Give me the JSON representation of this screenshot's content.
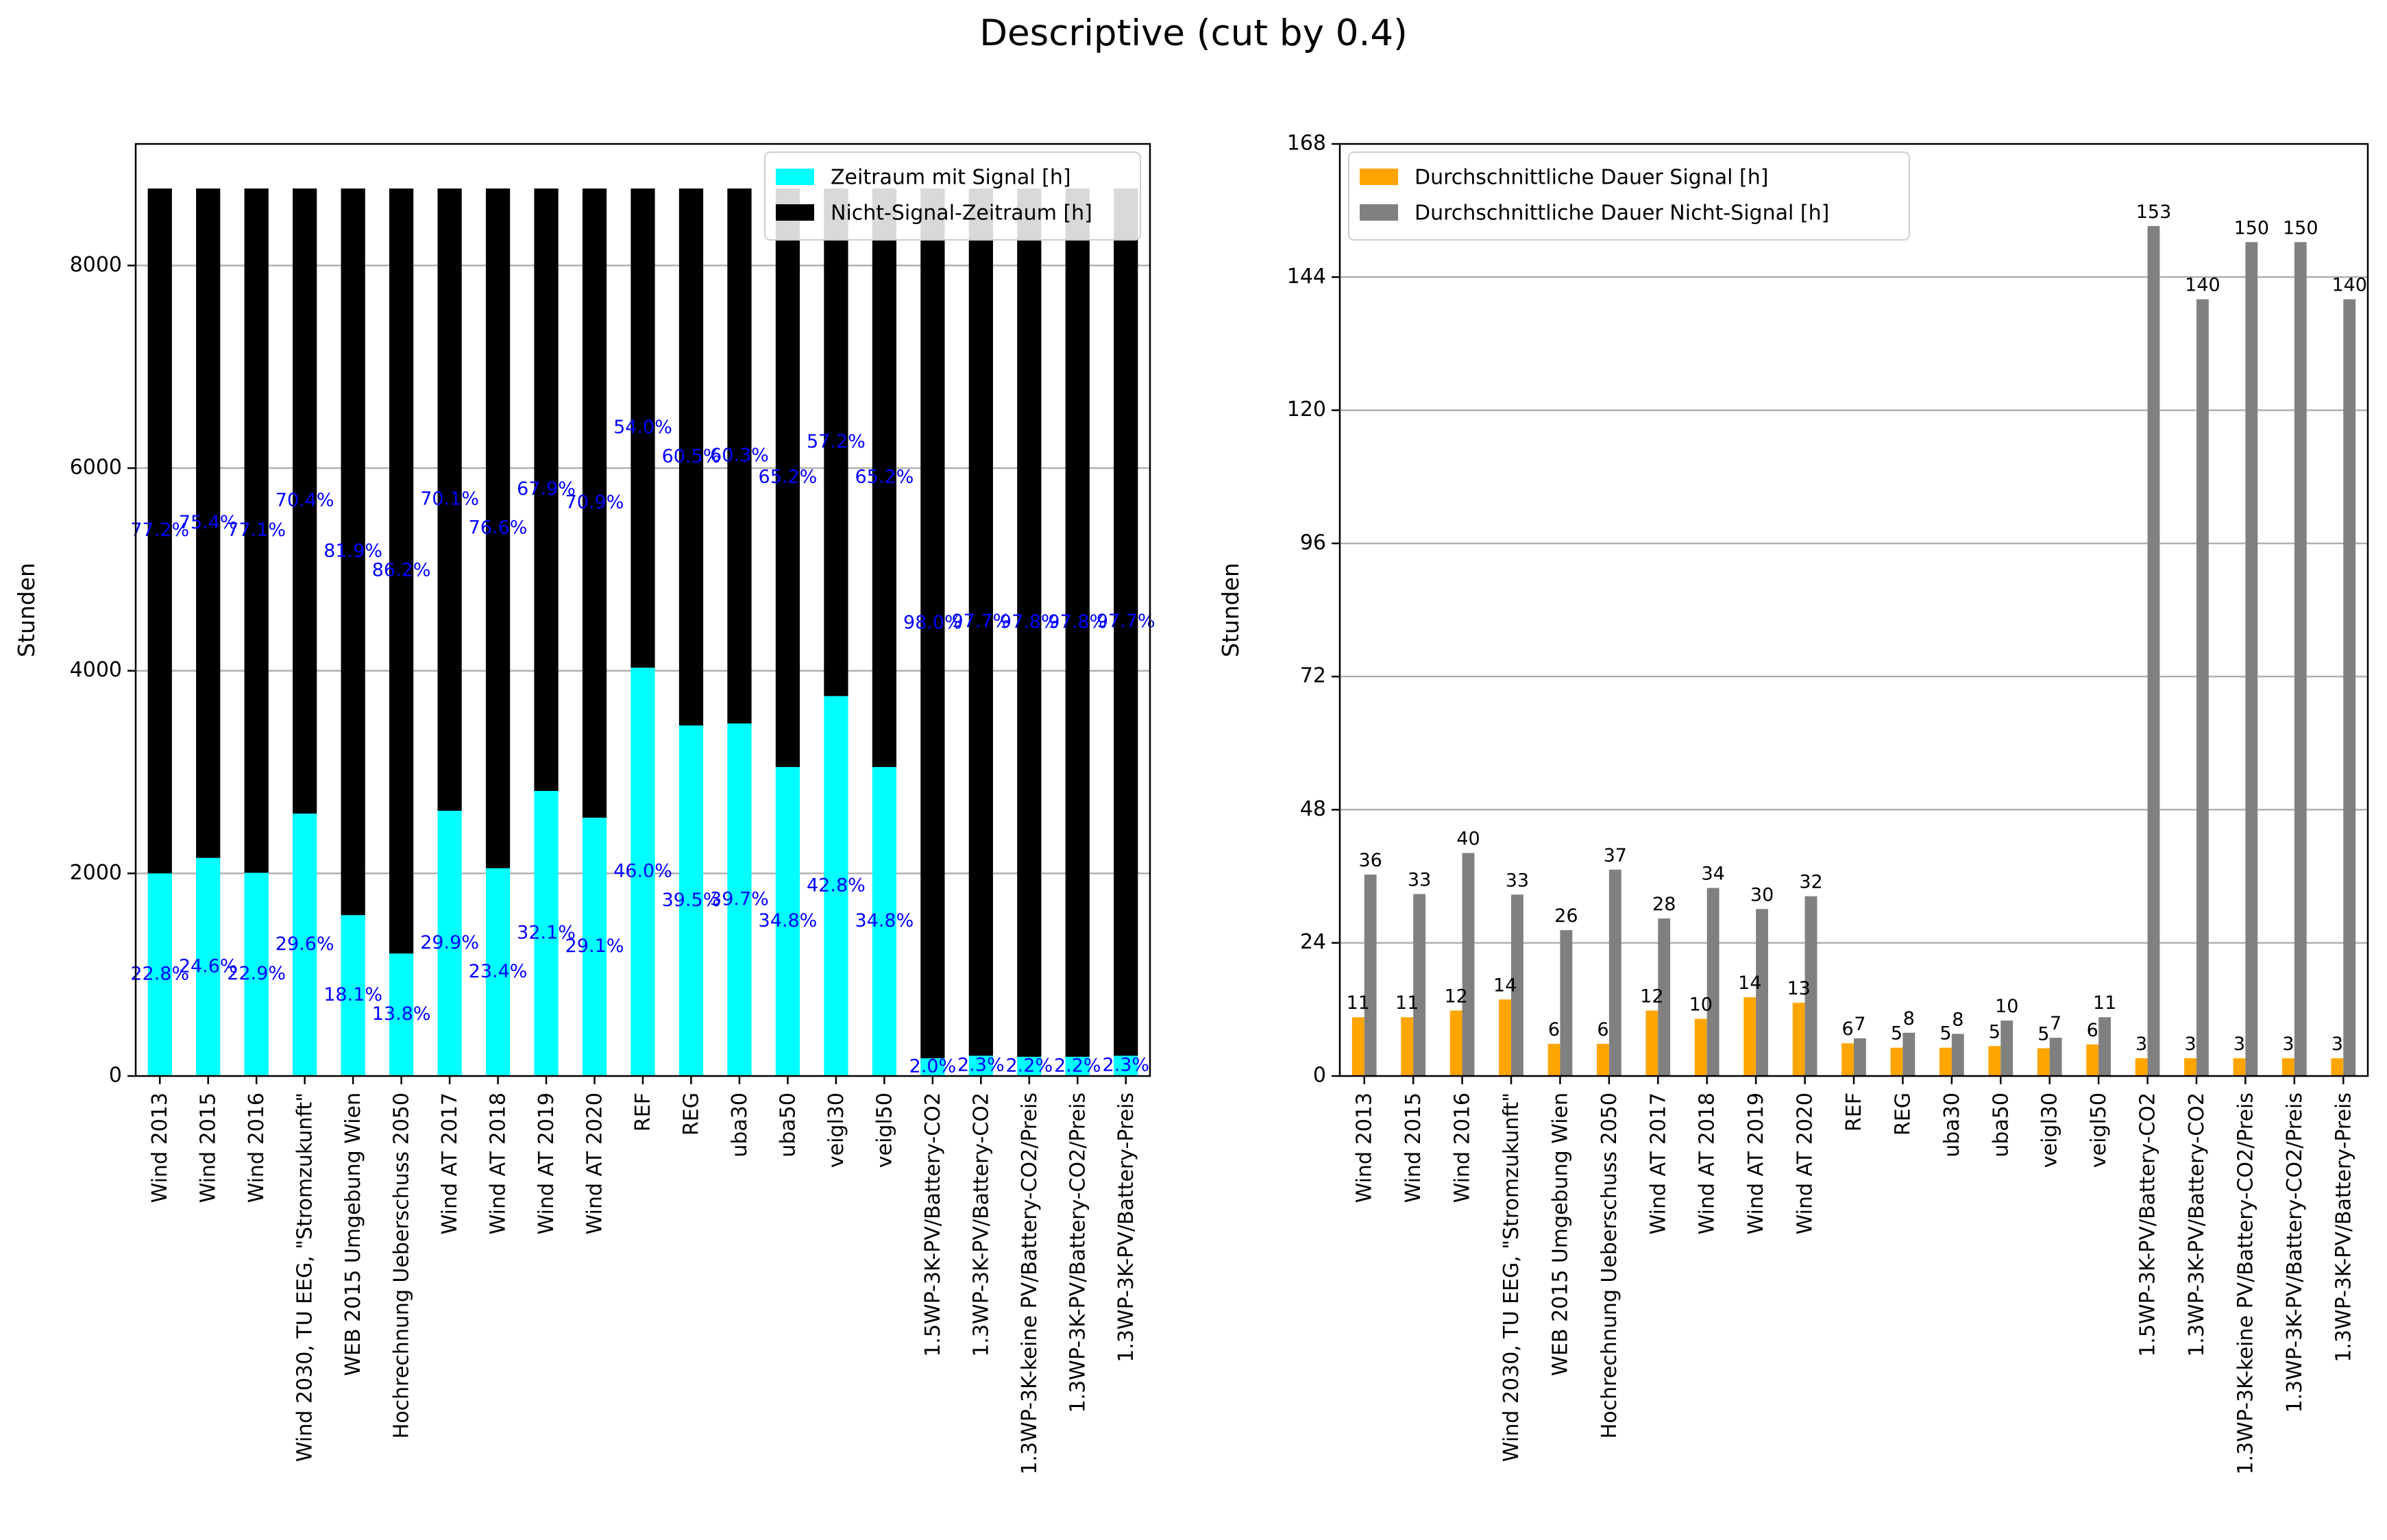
{
  "figure": {
    "title": "Descriptive (cut by 0.4)"
  },
  "chart_data": [
    {
      "type": "bar",
      "stacked": true,
      "ylabel": "Stunden",
      "xlabel": "",
      "ylim": [
        0,
        9200
      ],
      "yticks": [
        0,
        2000,
        4000,
        6000,
        8000
      ],
      "grid": "y",
      "legend_position": "top-right",
      "categories": [
        "Wind 2013",
        "Wind 2015",
        "Wind 2016",
        "Wind 2030, TU EEG, \"Stromzukunft\"",
        "WEB 2015 Umgebung Wien",
        "Hochrechnung Ueberschuss 2050",
        "Wind AT 2017",
        "Wind AT 2018",
        "Wind AT 2019",
        "Wind AT 2020",
        "REF",
        "REG",
        "uba30",
        "uba50",
        "veigl30",
        "veigl50",
        "1.5WP-3K-PV/Battery-CO2",
        "1.3WP-3K-PV/Battery-CO2",
        "1.3WP-3K-keine PV/Battery-CO2/Preis",
        "1.3WP-3K-PV/Battery-CO2/Preis",
        "1.3WP-3K-PV/Battery-Preis"
      ],
      "series": [
        {
          "name": "Zeitraum mit Signal [h]",
          "color": "#00ffff",
          "values": [
            2000,
            2153,
            2006,
            2590,
            1588,
            1209,
            2618,
            2051,
            2814,
            2549,
            4030,
            3460,
            3480,
            3050,
            3750,
            3050,
            175,
            200,
            190,
            190,
            200
          ]
        },
        {
          "name": "Nicht-Signal-Zeitraum [h]",
          "color": "#000000",
          "values": [
            6760,
            6607,
            6754,
            6170,
            7172,
            7551,
            6142,
            6709,
            5946,
            6211,
            4730,
            5300,
            5280,
            5710,
            5010,
            5710,
            8585,
            8560,
            8570,
            8570,
            8560
          ]
        }
      ],
      "bottom_labels": [
        "22.8%",
        "24.6%",
        "22.9%",
        "29.6%",
        "18.1%",
        "13.8%",
        "29.9%",
        "23.4%",
        "32.1%",
        "29.1%",
        "46.0%",
        "39.5%",
        "39.7%",
        "34.8%",
        "42.8%",
        "34.8%",
        "2.0%",
        "2.3%",
        "2.2%",
        "2.2%",
        "2.3%"
      ],
      "top_labels": [
        "77.2%",
        "75.4%",
        "77.1%",
        "70.4%",
        "81.9%",
        "86.2%",
        "70.1%",
        "76.6%",
        "67.9%",
        "70.9%",
        "54.0%",
        "60.5%",
        "60.3%",
        "65.2%",
        "57.2%",
        "65.2%",
        "98.0%",
        "97.7%",
        "97.8%",
        "97.8%",
        "97.7%"
      ],
      "label_color": "#0000ff"
    },
    {
      "type": "bar",
      "grouped": true,
      "ylabel": "Stunden",
      "xlabel": "",
      "ylim": [
        0,
        168
      ],
      "yticks": [
        0,
        24,
        48,
        72,
        96,
        120,
        144,
        168
      ],
      "grid": "y",
      "legend_position": "top-left",
      "categories": [
        "Wind 2013",
        "Wind 2015",
        "Wind 2016",
        "Wind 2030, TU EEG, \"Stromzukunft\"",
        "WEB 2015 Umgebung Wien",
        "Hochrechnung Ueberschuss 2050",
        "Wind AT 2017",
        "Wind AT 2018",
        "Wind AT 2019",
        "Wind AT 2020",
        "REF",
        "REG",
        "uba30",
        "uba50",
        "veigl30",
        "veigl50",
        "1.5WP-3K-PV/Battery-CO2",
        "1.3WP-3K-PV/Battery-CO2",
        "1.3WP-3K-keine PV/Battery-CO2/Preis",
        "1.3WP-3K-PV/Battery-CO2/Preis",
        "1.3WP-3K-PV/Battery-Preis"
      ],
      "series": [
        {
          "name": "Durchschnittliche Dauer Signal [h]",
          "color": "#ffa500",
          "values": [
            10.6,
            10.6,
            11.8,
            13.8,
            5.8,
            5.8,
            11.8,
            10.3,
            14.2,
            13.2,
            5.9,
            5.1,
            5.1,
            5.4,
            5.0,
            5.7,
            3.2,
            3.2,
            3.2,
            3.2,
            3.2
          ],
          "labels": [
            "11",
            "11",
            "12",
            "14",
            "6",
            "6",
            "12",
            "10",
            "14",
            "13",
            "6",
            "5",
            "5",
            "5",
            "5",
            "6",
            "3",
            "3",
            "3",
            "3",
            "3"
          ]
        },
        {
          "name": "Durchschnittliche Dauer Nicht-Signal [h]",
          "color": "#808080",
          "values": [
            36.3,
            32.8,
            40.2,
            32.7,
            26.3,
            37.2,
            28.4,
            33.9,
            30.1,
            32.4,
            6.8,
            7.8,
            7.6,
            10.0,
            6.9,
            10.6,
            153.2,
            140.0,
            150.3,
            150.3,
            140.0
          ],
          "labels": [
            "36",
            "33",
            "40",
            "33",
            "26",
            "37",
            "28",
            "34",
            "30",
            "32",
            "7",
            "8",
            "8",
            "10",
            "7",
            "11",
            "153",
            "140",
            "150",
            "150",
            "140"
          ]
        }
      ]
    }
  ]
}
